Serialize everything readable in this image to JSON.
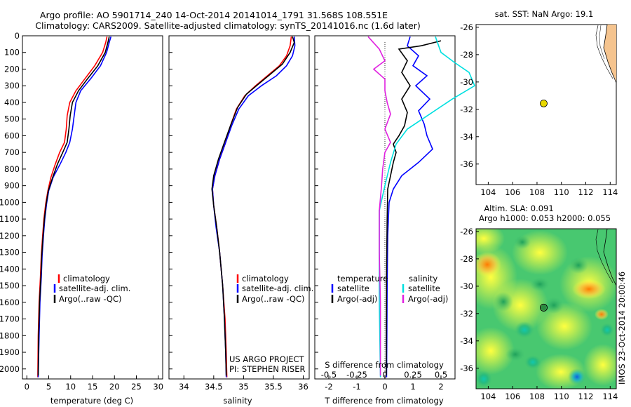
{
  "title": {
    "line1": "Argo profile: AO 5901714_240 14-Oct-2014 20141014_1791 31.568S 108.551E",
    "line2": "Climatology: CARS2009. Satellite-adjusted climatology: synTS_20141016.nc (1.6d later)"
  },
  "colors": {
    "clim": "#ff0000",
    "sat": "#0000ff",
    "argo": "#000000",
    "sat_s": "#00e0e0",
    "argo_s": "#e020e0",
    "land": "#f5c48f",
    "dot": "#e8d800"
  },
  "chart_data": [
    {
      "type": "line",
      "name": "temperature",
      "xlabel": "temperature (deg C)",
      "xlim": [
        -1,
        31
      ],
      "xticks": [
        0,
        5,
        10,
        15,
        20,
        25,
        30
      ],
      "ylim": [
        0,
        2060
      ],
      "yticks": [
        0,
        100,
        200,
        300,
        400,
        500,
        600,
        700,
        800,
        900,
        1000,
        1100,
        1200,
        1300,
        1400,
        1500,
        1600,
        1700,
        1800,
        1900,
        2000
      ],
      "legend": [
        "climatology",
        "satellite-adj. clim.",
        "Argo(..raw -QC)"
      ],
      "series": [
        {
          "name": "climatology",
          "color": "clim",
          "points": [
            [
              18.3,
              5
            ],
            [
              18.0,
              40
            ],
            [
              17.3,
              100
            ],
            [
              15.5,
              180
            ],
            [
              13.2,
              260
            ],
            [
              11.2,
              330
            ],
            [
              9.8,
              400
            ],
            [
              9.2,
              480
            ],
            [
              9.0,
              560
            ],
            [
              8.6,
              640
            ],
            [
              7.5,
              700
            ],
            [
              6.5,
              770
            ],
            [
              5.5,
              850
            ],
            [
              4.8,
              930
            ],
            [
              4.3,
              1010
            ],
            [
              3.9,
              1100
            ],
            [
              3.6,
              1200
            ],
            [
              3.3,
              1320
            ],
            [
              3.1,
              1450
            ],
            [
              2.8,
              1600
            ],
            [
              2.6,
              1800
            ],
            [
              2.5,
              2050
            ]
          ]
        },
        {
          "name": "satellite-adj. clim.",
          "color": "sat",
          "points": [
            [
              19.2,
              5
            ],
            [
              18.8,
              40
            ],
            [
              18.2,
              100
            ],
            [
              16.8,
              180
            ],
            [
              14.5,
              260
            ],
            [
              12.3,
              330
            ],
            [
              11.2,
              400
            ],
            [
              10.8,
              480
            ],
            [
              10.4,
              560
            ],
            [
              9.8,
              640
            ],
            [
              8.9,
              700
            ],
            [
              7.6,
              770
            ],
            [
              6.0,
              850
            ],
            [
              5.0,
              930
            ],
            [
              4.5,
              1010
            ],
            [
              4.1,
              1100
            ],
            [
              3.8,
              1200
            ],
            [
              3.5,
              1320
            ],
            [
              3.3,
              1450
            ],
            [
              3.0,
              1600
            ],
            [
              2.8,
              1800
            ],
            [
              2.6,
              2050
            ]
          ]
        },
        {
          "name": "Argo(..raw -QC)",
          "color": "argo",
          "points": [
            [
              18.8,
              5
            ],
            [
              18.5,
              40
            ],
            [
              17.9,
              100
            ],
            [
              16.2,
              180
            ],
            [
              13.8,
              260
            ],
            [
              11.8,
              330
            ],
            [
              10.4,
              400
            ],
            [
              9.9,
              480
            ],
            [
              9.6,
              560
            ],
            [
              9.2,
              640
            ],
            [
              8.2,
              700
            ],
            [
              7.0,
              770
            ],
            [
              5.9,
              850
            ],
            [
              4.9,
              930
            ],
            [
              4.4,
              1010
            ],
            [
              4.0,
              1100
            ],
            [
              3.7,
              1200
            ],
            [
              3.4,
              1320
            ],
            [
              3.2,
              1450
            ],
            [
              2.9,
              1600
            ],
            [
              2.7,
              1800
            ],
            [
              2.6,
              2040
            ]
          ]
        }
      ]
    },
    {
      "type": "line",
      "name": "salinity",
      "xlabel": "salinity",
      "xlim": [
        33.75,
        36.1
      ],
      "xticks": [
        34,
        34.5,
        35,
        35.5,
        36
      ],
      "ylim": [
        0,
        2060
      ],
      "legend": [
        "climatology",
        "satellite-adj. clim.",
        "Argo(..raw -QC)"
      ],
      "annotation": [
        "US ARGO PROJECT",
        "PI: STEPHEN RISER"
      ],
      "series": [
        {
          "name": "climatology",
          "color": "clim",
          "points": [
            [
              35.8,
              5
            ],
            [
              35.78,
              60
            ],
            [
              35.72,
              120
            ],
            [
              35.6,
              180
            ],
            [
              35.4,
              240
            ],
            [
              35.2,
              300
            ],
            [
              35.02,
              360
            ],
            [
              34.88,
              440
            ],
            [
              34.78,
              540
            ],
            [
              34.7,
              640
            ],
            [
              34.6,
              740
            ],
            [
              34.52,
              840
            ],
            [
              34.48,
              920
            ],
            [
              34.5,
              1020
            ],
            [
              34.55,
              1150
            ],
            [
              34.6,
              1300
            ],
            [
              34.65,
              1500
            ],
            [
              34.69,
              1700
            ],
            [
              34.71,
              1900
            ],
            [
              34.72,
              2050
            ]
          ]
        },
        {
          "name": "satellite-adj. clim.",
          "color": "sat",
          "points": [
            [
              35.85,
              5
            ],
            [
              35.86,
              60
            ],
            [
              35.82,
              120
            ],
            [
              35.72,
              180
            ],
            [
              35.55,
              240
            ],
            [
              35.3,
              300
            ],
            [
              35.08,
              360
            ],
            [
              34.92,
              440
            ],
            [
              34.8,
              540
            ],
            [
              34.7,
              640
            ],
            [
              34.6,
              740
            ],
            [
              34.52,
              840
            ],
            [
              34.48,
              920
            ],
            [
              34.5,
              1020
            ],
            [
              34.54,
              1150
            ],
            [
              34.6,
              1300
            ],
            [
              34.65,
              1500
            ],
            [
              34.68,
              1700
            ],
            [
              34.7,
              1900
            ],
            [
              34.71,
              2050
            ]
          ]
        },
        {
          "name": "Argo(..raw -QC)",
          "color": "argo",
          "points": [
            [
              35.82,
              5
            ],
            [
              35.85,
              40
            ],
            [
              35.78,
              100
            ],
            [
              35.65,
              170
            ],
            [
              35.45,
              230
            ],
            [
              35.25,
              290
            ],
            [
              35.05,
              350
            ],
            [
              34.9,
              430
            ],
            [
              34.78,
              540
            ],
            [
              34.68,
              640
            ],
            [
              34.58,
              740
            ],
            [
              34.5,
              840
            ],
            [
              34.47,
              920
            ],
            [
              34.5,
              1020
            ],
            [
              34.55,
              1150
            ],
            [
              34.6,
              1300
            ],
            [
              34.65,
              1500
            ],
            [
              34.68,
              1700
            ],
            [
              34.7,
              1900
            ],
            [
              34.71,
              2040
            ]
          ]
        }
      ]
    },
    {
      "type": "line",
      "name": "difference",
      "xlabel": "T difference from climatology",
      "xlabel_top": "S difference from climatology",
      "xlim": [
        -2.5,
        2.5
      ],
      "xticks": [
        -2,
        -1,
        0,
        1,
        2
      ],
      "xticks_s": [
        "-0.5",
        "-0.25",
        "0",
        "0.25",
        "0.5"
      ],
      "ylim": [
        0,
        2060
      ],
      "legend": {
        "temperature_header": "temperature",
        "salinity_header": "salinity",
        "t_sat": "satellite",
        "t_argo": "Argo(-adj)",
        "s_sat": "satellite",
        "s_argo": "Argo(-adj)"
      },
      "series": [
        {
          "name": "T satellite",
          "color": "sat",
          "points": [
            [
              0.9,
              5
            ],
            [
              0.8,
              60
            ],
            [
              1.2,
              120
            ],
            [
              1.0,
              180
            ],
            [
              1.5,
              240
            ],
            [
              1.1,
              300
            ],
            [
              1.6,
              380
            ],
            [
              1.2,
              450
            ],
            [
              1.4,
              530
            ],
            [
              1.5,
              600
            ],
            [
              1.7,
              680
            ],
            [
              1.2,
              760
            ],
            [
              0.6,
              840
            ],
            [
              0.3,
              920
            ],
            [
              0.15,
              1000
            ],
            [
              0.1,
              1200
            ],
            [
              0.08,
              1500
            ],
            [
              0.07,
              1800
            ],
            [
              0.06,
              2050
            ]
          ]
        },
        {
          "name": "T Argo(-adj)",
          "color": "argo",
          "points": [
            [
              2.0,
              30
            ],
            [
              1.3,
              60
            ],
            [
              0.5,
              80
            ],
            [
              0.8,
              150
            ],
            [
              0.6,
              220
            ],
            [
              0.9,
              300
            ],
            [
              0.6,
              380
            ],
            [
              0.8,
              460
            ],
            [
              0.7,
              540
            ],
            [
              0.5,
              600
            ],
            [
              0.3,
              650
            ],
            [
              0.4,
              700
            ],
            [
              0.3,
              760
            ],
            [
              0.2,
              840
            ],
            [
              0.1,
              920
            ],
            [
              0.08,
              1100
            ],
            [
              0.06,
              1400
            ],
            [
              0.05,
              1800
            ],
            [
              0.05,
              2040
            ]
          ]
        },
        {
          "name": "S satellite",
          "color": "sat_s",
          "points": [
            [
              0.45,
              5
            ],
            [
              0.5,
              100
            ],
            [
              0.62,
              160
            ],
            [
              0.75,
              220
            ],
            [
              0.8,
              300
            ],
            [
              0.6,
              380
            ],
            [
              0.4,
              470
            ],
            [
              0.2,
              560
            ],
            [
              0.1,
              650
            ],
            [
              0.05,
              760
            ],
            [
              0.0,
              900
            ],
            [
              -0.05,
              1050
            ],
            [
              -0.05,
              1300
            ],
            [
              -0.05,
              1600
            ],
            [
              -0.04,
              2050
            ]
          ]
        },
        {
          "name": "S Argo(-adj)",
          "color": "argo_s",
          "points": [
            [
              -0.15,
              5
            ],
            [
              -0.05,
              80
            ],
            [
              0.0,
              150
            ],
            [
              -0.1,
              200
            ],
            [
              0.0,
              260
            ],
            [
              0.0,
              330
            ],
            [
              0.02,
              400
            ],
            [
              0.05,
              470
            ],
            [
              0.0,
              560
            ],
            [
              0.05,
              640
            ],
            [
              0.0,
              700
            ],
            [
              -0.02,
              800
            ],
            [
              -0.03,
              900
            ],
            [
              -0.05,
              1050
            ],
            [
              -0.05,
              1300
            ],
            [
              -0.04,
              1600
            ],
            [
              -0.04,
              2040
            ]
          ]
        }
      ]
    },
    {
      "type": "scatter",
      "name": "sst-map",
      "title": "sat. SST: NaN Argo: 19.1",
      "xlim": [
        103,
        114.5
      ],
      "ylim": [
        -37.5,
        -25.8
      ],
      "xticks": [
        104,
        106,
        108,
        110,
        112,
        114
      ],
      "yticks": [
        -26,
        -28,
        -30,
        -32,
        -34,
        -36
      ],
      "point": {
        "lon": 108.551,
        "lat": -31.568
      }
    },
    {
      "type": "heatmap",
      "name": "sla-map",
      "title_line1": "Altim. SLA: 0.091",
      "title_line2": "Argo h1000: 0.053 h2000: 0.055",
      "xlim": [
        103,
        114.5
      ],
      "ylim": [
        -37.5,
        -25.8
      ],
      "xticks": [
        104,
        106,
        108,
        110,
        112,
        114
      ],
      "yticks": [
        -26,
        -28,
        -30,
        -32,
        -34,
        -36
      ],
      "point": {
        "lon": 108.551,
        "lat": -31.568
      }
    }
  ],
  "credit": "IMOS 23-Oct-2014 20:00:46"
}
